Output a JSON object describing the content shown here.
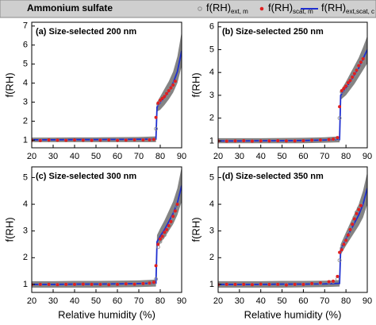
{
  "header": {
    "title": "Ammonium sulfate"
  },
  "chart_data": [
    {
      "type": "scatter",
      "title": "(a) Size-selected 200 nm",
      "ylabel": "f(RH)",
      "xlim": [
        20,
        90
      ],
      "xticks": [
        20,
        30,
        40,
        50,
        60,
        70,
        80,
        90
      ],
      "ylim": [
        0.6,
        7.2
      ],
      "yticks": [
        1,
        2,
        3,
        4,
        5,
        6,
        7
      ],
      "series": [
        {
          "name": "f(RH)",
          "name_sub": "ext, m",
          "marker": "open",
          "color": "#8c8c8c",
          "x": [
            20,
            24,
            28,
            32,
            36,
            40,
            44,
            48,
            52,
            56,
            60,
            64,
            68,
            72,
            75,
            77,
            78,
            79,
            80,
            81,
            82,
            83,
            84,
            85,
            86,
            87
          ],
          "values": [
            1.0,
            1.01,
            0.99,
            1.0,
            1.01,
            1.0,
            0.99,
            1.0,
            1.01,
            1.0,
            1.0,
            1.02,
            1.01,
            1.02,
            1.03,
            1.05,
            1.6,
            2.9,
            3.05,
            3.15,
            3.25,
            3.4,
            3.55,
            3.7,
            3.85,
            4.05
          ]
        },
        {
          "name": "f(RH)",
          "name_sub": "scat, m",
          "marker": "filled",
          "color": "#e02020",
          "x": [
            20,
            24,
            28,
            32,
            36,
            40,
            44,
            48,
            52,
            56,
            60,
            64,
            68,
            72,
            75,
            77,
            78,
            79,
            80,
            81,
            82,
            83,
            84,
            85,
            86,
            87
          ],
          "values": [
            1.0,
            0.98,
            1.01,
            1.0,
            0.99,
            1.01,
            1.0,
            0.99,
            1.0,
            1.01,
            0.99,
            1.0,
            1.02,
            1.01,
            1.02,
            1.04,
            2.2,
            2.95,
            3.1,
            3.2,
            3.3,
            3.45,
            3.6,
            3.75,
            3.9,
            4.1
          ]
        },
        {
          "name": "f(RH)",
          "name_sub": "ext,scat, c",
          "marker": "line",
          "color": "#1f2fd0",
          "band_color": "#6e6e6e",
          "x": [
            20,
            30,
            40,
            50,
            60,
            70,
            78,
            78.5,
            80,
            82,
            84,
            86,
            88,
            90
          ],
          "values": [
            1.02,
            1.02,
            1.03,
            1.03,
            1.04,
            1.05,
            1.06,
            2.75,
            2.95,
            3.25,
            3.6,
            4.0,
            4.6,
            5.7
          ],
          "lower": [
            0.9,
            0.9,
            0.9,
            0.9,
            0.9,
            0.9,
            0.9,
            2.5,
            2.6,
            2.85,
            3.15,
            3.5,
            4.0,
            4.9
          ],
          "upper": [
            1.14,
            1.14,
            1.15,
            1.15,
            1.16,
            1.17,
            1.2,
            3.0,
            3.3,
            3.7,
            4.1,
            4.6,
            5.4,
            6.7
          ]
        }
      ]
    },
    {
      "type": "scatter",
      "title": "(b) Size-selected 250 nm",
      "ylabel": "f(RH)",
      "xlim": [
        20,
        90
      ],
      "xticks": [
        20,
        30,
        40,
        50,
        60,
        70,
        80,
        90
      ],
      "ylim": [
        0.7,
        6.2
      ],
      "yticks": [
        1,
        2,
        3,
        4,
        5,
        6
      ],
      "series": [
        {
          "marker": "open",
          "color": "#8c8c8c",
          "x": [
            20,
            24,
            28,
            32,
            36,
            40,
            44,
            48,
            52,
            56,
            60,
            64,
            68,
            72,
            74,
            76,
            77,
            78,
            79,
            80,
            81,
            82,
            83,
            84,
            85,
            86,
            87,
            88
          ],
          "values": [
            1.0,
            1.0,
            0.99,
            1.0,
            1.0,
            1.01,
            1.0,
            1.0,
            0.99,
            1.01,
            1.0,
            1.02,
            1.03,
            1.04,
            1.06,
            1.1,
            2.0,
            3.15,
            3.25,
            3.35,
            3.5,
            3.6,
            3.75,
            3.9,
            4.05,
            4.2,
            4.4,
            4.55
          ]
        },
        {
          "marker": "filled",
          "color": "#e02020",
          "x": [
            20,
            24,
            28,
            32,
            36,
            40,
            44,
            48,
            52,
            56,
            60,
            64,
            68,
            72,
            74,
            76,
            77,
            78,
            79,
            80,
            81,
            82,
            83,
            84,
            85,
            86,
            87,
            88
          ],
          "values": [
            1.0,
            0.99,
            1.0,
            1.01,
            0.99,
            1.0,
            1.0,
            1.01,
            1.0,
            1.0,
            1.01,
            1.03,
            1.04,
            1.06,
            1.08,
            1.15,
            2.5,
            3.2,
            3.3,
            3.4,
            3.55,
            3.65,
            3.8,
            3.95,
            4.1,
            4.3,
            4.45,
            4.6
          ]
        },
        {
          "marker": "line",
          "color": "#1f2fd0",
          "band_color": "#6e6e6e",
          "x": [
            20,
            30,
            40,
            50,
            60,
            70,
            77,
            77.5,
            80,
            82,
            84,
            86,
            88,
            90
          ],
          "values": [
            1.0,
            1.0,
            1.01,
            1.01,
            1.02,
            1.04,
            1.06,
            3.0,
            3.3,
            3.6,
            3.9,
            4.2,
            4.6,
            5.0
          ],
          "lower": [
            0.9,
            0.9,
            0.9,
            0.9,
            0.9,
            0.92,
            0.94,
            2.8,
            3.0,
            3.25,
            3.5,
            3.8,
            4.1,
            4.4
          ],
          "upper": [
            1.12,
            1.12,
            1.12,
            1.13,
            1.14,
            1.16,
            1.2,
            3.2,
            3.6,
            3.95,
            4.3,
            4.65,
            5.1,
            5.6
          ]
        }
      ]
    },
    {
      "type": "scatter",
      "title": "(c) Size-selected 300 nm",
      "ylabel": "f(RH)",
      "xlabel": "Relative humidity (%)",
      "xlim": [
        20,
        90
      ],
      "xticks": [
        20,
        30,
        40,
        50,
        60,
        70,
        80,
        90
      ],
      "ylim": [
        0.7,
        5.4
      ],
      "yticks": [
        1,
        2,
        3,
        4,
        5
      ],
      "series": [
        {
          "marker": "open",
          "color": "#8c8c8c",
          "x": [
            20,
            24,
            28,
            32,
            36,
            40,
            44,
            48,
            52,
            56,
            60,
            64,
            68,
            72,
            75,
            77,
            78,
            79,
            80,
            81,
            82,
            83,
            84,
            85,
            86,
            87,
            88
          ],
          "values": [
            1.0,
            1.0,
            0.99,
            1.0,
            1.01,
            1.0,
            1.0,
            0.99,
            1.0,
            1.01,
            1.0,
            1.01,
            1.02,
            1.03,
            1.04,
            1.05,
            1.2,
            2.4,
            2.6,
            2.75,
            2.85,
            3.0,
            3.15,
            3.3,
            3.5,
            3.7,
            3.9
          ]
        },
        {
          "marker": "filled",
          "color": "#e02020",
          "x": [
            20,
            24,
            28,
            32,
            36,
            40,
            44,
            48,
            52,
            56,
            60,
            64,
            68,
            72,
            75,
            77,
            78,
            79,
            80,
            81,
            82,
            83,
            84,
            85,
            86,
            87,
            88
          ],
          "values": [
            0.99,
            1.0,
            1.0,
            0.99,
            1.0,
            1.0,
            1.01,
            1.0,
            1.0,
            0.99,
            1.0,
            1.02,
            1.01,
            1.03,
            1.05,
            1.08,
            1.7,
            2.5,
            2.7,
            2.8,
            2.95,
            3.05,
            3.2,
            3.35,
            3.55,
            3.75,
            4.0
          ]
        },
        {
          "marker": "line",
          "color": "#1f2fd0",
          "band_color": "#6e6e6e",
          "x": [
            20,
            30,
            40,
            50,
            60,
            70,
            78,
            78.5,
            80,
            82,
            84,
            86,
            88,
            90
          ],
          "values": [
            1.0,
            1.0,
            1.01,
            1.01,
            1.02,
            1.03,
            1.05,
            2.6,
            2.8,
            3.05,
            3.35,
            3.65,
            4.05,
            4.7
          ],
          "lower": [
            0.88,
            0.88,
            0.88,
            0.88,
            0.89,
            0.9,
            0.92,
            2.4,
            2.55,
            2.75,
            3.0,
            3.25,
            3.6,
            4.1
          ],
          "upper": [
            1.12,
            1.12,
            1.13,
            1.13,
            1.14,
            1.15,
            1.18,
            2.85,
            3.1,
            3.4,
            3.75,
            4.1,
            4.6,
            5.4
          ]
        }
      ]
    },
    {
      "type": "scatter",
      "title": "(d) Size-selected 350 nm",
      "ylabel": "f(RH)",
      "xlabel": "Relative humidity (%)",
      "xlim": [
        20,
        90
      ],
      "xticks": [
        20,
        30,
        40,
        50,
        60,
        70,
        80,
        90
      ],
      "ylim": [
        0.7,
        5.4
      ],
      "yticks": [
        1,
        2,
        3,
        4,
        5
      ],
      "series": [
        {
          "marker": "open",
          "color": "#8c8c8c",
          "x": [
            20,
            24,
            28,
            32,
            36,
            40,
            44,
            48,
            52,
            56,
            60,
            64,
            68,
            72,
            74,
            76,
            77,
            78,
            79,
            80,
            81,
            82,
            83,
            84,
            85,
            86,
            87
          ],
          "values": [
            1.0,
            1.0,
            1.01,
            0.99,
            1.0,
            1.0,
            1.01,
            1.0,
            1.0,
            0.99,
            1.01,
            1.02,
            1.05,
            1.08,
            1.1,
            1.2,
            1.9,
            2.35,
            2.55,
            2.7,
            2.9,
            3.1,
            3.3,
            3.5,
            3.7,
            3.85,
            4.0
          ]
        },
        {
          "marker": "filled",
          "color": "#e02020",
          "x": [
            20,
            24,
            28,
            32,
            36,
            40,
            44,
            48,
            52,
            56,
            60,
            64,
            68,
            72,
            74,
            76,
            77,
            78,
            79,
            80,
            81,
            82,
            83,
            84,
            85,
            86,
            87
          ],
          "values": [
            0.99,
            1.0,
            1.0,
            1.0,
            0.99,
            1.01,
            1.0,
            1.0,
            0.98,
            1.0,
            1.0,
            1.03,
            1.06,
            1.1,
            1.12,
            1.3,
            2.2,
            2.3,
            2.5,
            2.65,
            2.85,
            3.05,
            3.25,
            3.45,
            3.65,
            3.8,
            3.95
          ]
        },
        {
          "marker": "line",
          "color": "#1f2fd0",
          "band_color": "#6e6e6e",
          "x": [
            20,
            30,
            40,
            50,
            60,
            70,
            77,
            77.5,
            80,
            82,
            84,
            86,
            88,
            90
          ],
          "values": [
            1.0,
            1.0,
            1.0,
            1.01,
            1.01,
            1.02,
            1.04,
            2.3,
            2.7,
            3.0,
            3.3,
            3.6,
            4.0,
            4.6
          ],
          "lower": [
            0.88,
            0.88,
            0.88,
            0.88,
            0.89,
            0.9,
            0.92,
            2.1,
            2.45,
            2.7,
            2.95,
            3.2,
            3.5,
            4.0
          ],
          "upper": [
            1.12,
            1.12,
            1.12,
            1.13,
            1.13,
            1.14,
            1.16,
            2.5,
            2.95,
            3.3,
            3.65,
            4.0,
            4.5,
            5.2
          ]
        }
      ]
    }
  ]
}
